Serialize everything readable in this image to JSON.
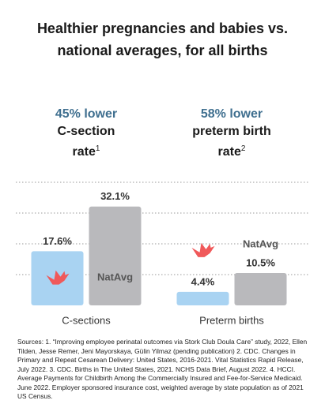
{
  "chart_data": {
    "type": "bar",
    "title": "Healthier pregnancies and babies vs. national averages, for all births",
    "headlines": [
      "45% lower",
      "58% lower"
    ],
    "metrics": [
      "C-section rate",
      "preterm birth rate"
    ],
    "footnote_marks": [
      "1",
      "2"
    ],
    "categories": [
      "C-sections",
      "Preterm births"
    ],
    "series": [
      {
        "color": "#a9d3f2",
        "values": [
          17.6,
          4.4
        ],
        "value_labels": [
          "17.6%",
          "4.4%"
        ]
      },
      {
        "name": "NatAvg",
        "color": "#b9b9bc",
        "values": [
          32.1,
          10.5
        ],
        "value_labels": [
          "32.1%",
          "10.5%"
        ]
      }
    ],
    "ylim": [
      0,
      40
    ],
    "gridlines": [
      10,
      20,
      30,
      40
    ],
    "sources": "Sources: 1. “Improving employee perinatal outcomes via Stork Club Doula Care” study, 2022, Ellen Tilden, Jesse Remer, Jeni Mayorskaya, Gülin Yilmaz (pending publication) 2. CDC. Changes in Primary and Repeat Cesarean Delivery: United States, 2016-2021. Vital Statistics Rapid Release, July 2022. 3. CDC. Births in The United States, 2021. NCHS Data Brief, August 2022. 4. HCCI. Average Payments for Childbirth Among the Commercially Insured and Fee-for-Service Medicaid. June 2022. Employer sponsored insurance cost, weighted average by state population as of 2021 US Census."
  }
}
